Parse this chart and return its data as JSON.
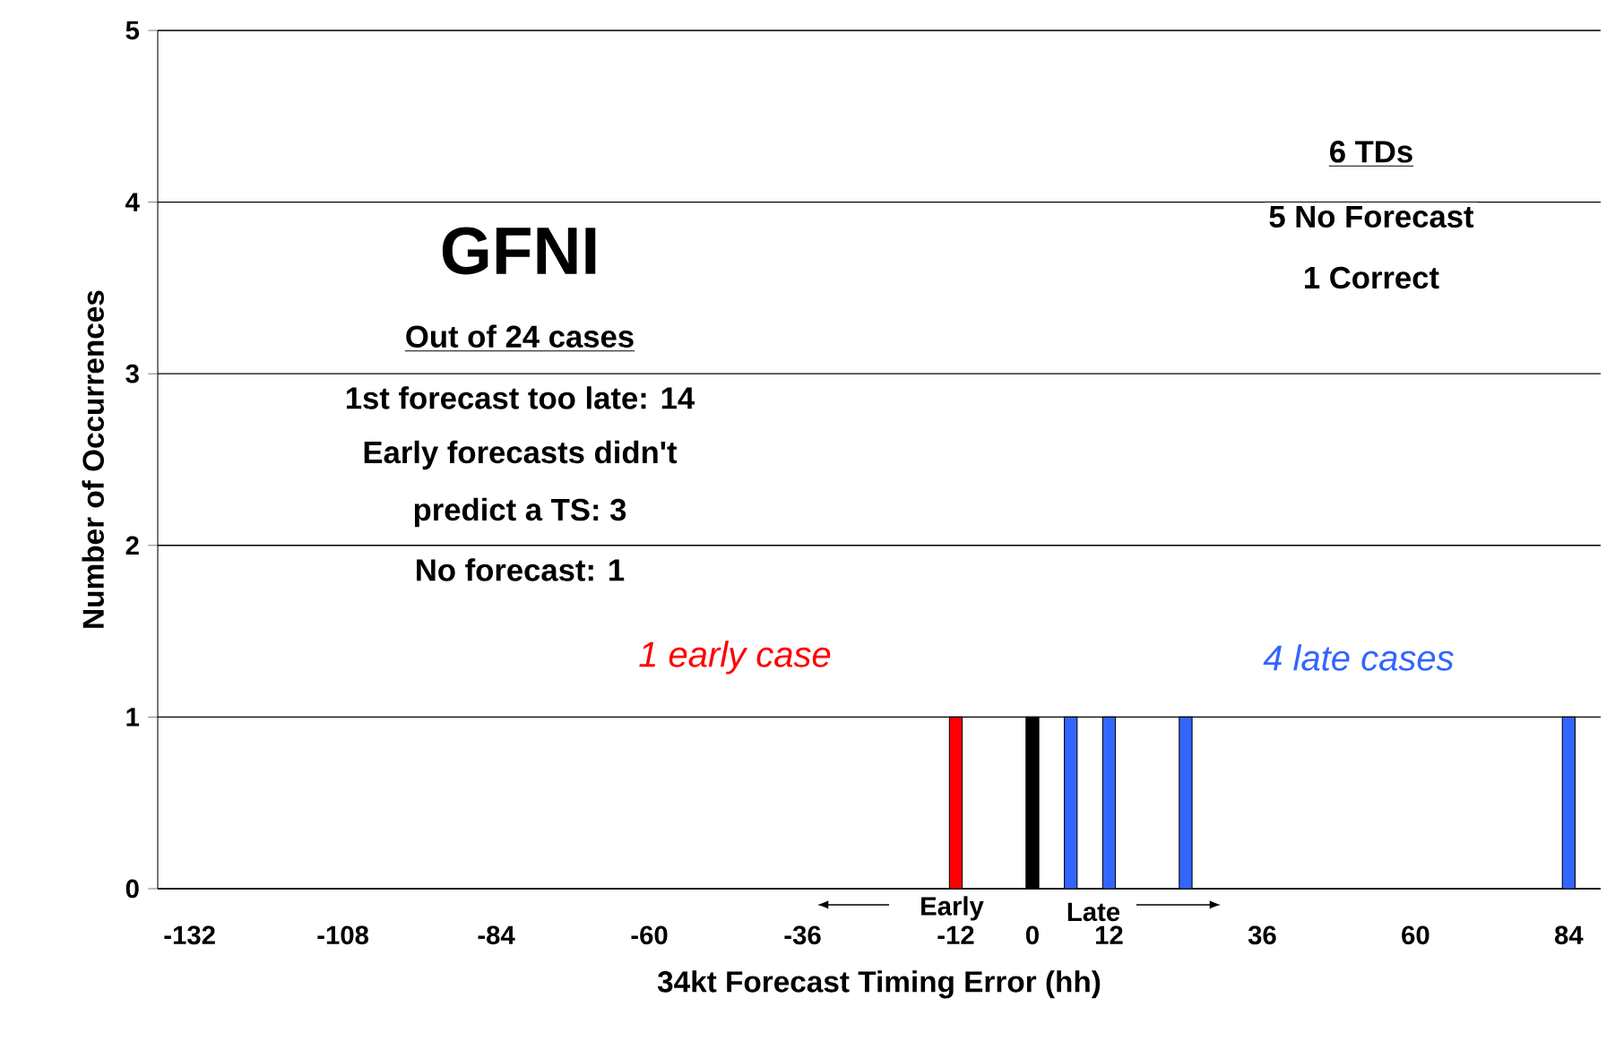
{
  "chart_data": {
    "type": "bar",
    "xlabel": "34kt Forecast Timing Error (hh)",
    "ylabel": "Number of Occurrences",
    "series": [
      {
        "name": "1 early case",
        "color": "#ff0000",
        "x": [
          -12
        ],
        "values": [
          1
        ]
      },
      {
        "color": "#000000",
        "x": [
          0
        ],
        "values": [
          1
        ]
      },
      {
        "name": "4 late cases",
        "color": "#3366ff",
        "x": [
          6,
          12,
          24,
          84
        ],
        "values": [
          1,
          1,
          1,
          1
        ]
      }
    ],
    "xlim": [
      -137,
      89
    ],
    "xticks": [
      -132,
      -108,
      -84,
      -60,
      -36,
      -12,
      0,
      12,
      36,
      60,
      84
    ],
    "ylim": [
      0,
      5
    ],
    "yticks": [
      0,
      1,
      2,
      3,
      4,
      5
    ],
    "grid": "y",
    "legend": false,
    "annotations": [
      "GFNI",
      "Out of 24 cases",
      "1st forecast too late: 14",
      "Early forecasts didn't",
      "predict a TS: 3",
      "No forecast: 1",
      "6 TDs",
      "5 No Forecast",
      "1 Correct",
      "Early",
      "Late"
    ]
  }
}
